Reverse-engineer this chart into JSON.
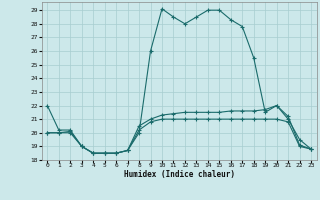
{
  "xlabel": "Humidex (Indice chaleur)",
  "background_color": "#cce8ea",
  "grid_color": "#a8cdd0",
  "line_color": "#1a6b6b",
  "xlim": [
    -0.5,
    23.5
  ],
  "ylim": [
    18,
    29.6
  ],
  "yticks": [
    18,
    19,
    20,
    21,
    22,
    23,
    24,
    25,
    26,
    27,
    28,
    29
  ],
  "xticks": [
    0,
    1,
    2,
    3,
    4,
    5,
    6,
    7,
    8,
    9,
    10,
    11,
    12,
    13,
    14,
    15,
    16,
    17,
    18,
    19,
    20,
    21,
    22,
    23
  ],
  "line1_x": [
    0,
    1,
    2,
    3,
    4,
    5,
    6,
    7,
    8,
    9,
    10,
    11,
    12,
    13,
    14,
    15,
    16,
    17,
    18,
    19,
    20,
    21,
    22,
    23
  ],
  "line1_y": [
    22.0,
    20.2,
    20.2,
    19.0,
    18.5,
    18.5,
    18.5,
    18.7,
    20.0,
    26.0,
    29.1,
    28.5,
    28.0,
    28.5,
    29.0,
    29.0,
    28.3,
    27.8,
    25.5,
    21.5,
    22.0,
    21.0,
    19.5,
    18.8
  ],
  "line2_x": [
    0,
    1,
    2,
    3,
    4,
    5,
    6,
    7,
    8,
    9,
    10,
    11,
    12,
    13,
    14,
    15,
    16,
    17,
    18,
    19,
    20,
    21,
    22,
    23
  ],
  "line2_y": [
    20.0,
    20.0,
    20.1,
    19.0,
    18.5,
    18.5,
    18.5,
    18.7,
    20.5,
    21.0,
    21.3,
    21.4,
    21.5,
    21.5,
    21.5,
    21.5,
    21.6,
    21.6,
    21.6,
    21.7,
    22.0,
    21.2,
    19.1,
    18.8
  ],
  "line3_x": [
    0,
    1,
    2,
    3,
    4,
    5,
    6,
    7,
    8,
    9,
    10,
    11,
    12,
    13,
    14,
    15,
    16,
    17,
    18,
    19,
    20,
    21,
    22,
    23
  ],
  "line3_y": [
    20.0,
    20.0,
    20.0,
    19.0,
    18.5,
    18.5,
    18.5,
    18.7,
    20.2,
    20.8,
    21.0,
    21.0,
    21.0,
    21.0,
    21.0,
    21.0,
    21.0,
    21.0,
    21.0,
    21.0,
    21.0,
    20.8,
    19.0,
    18.8
  ]
}
